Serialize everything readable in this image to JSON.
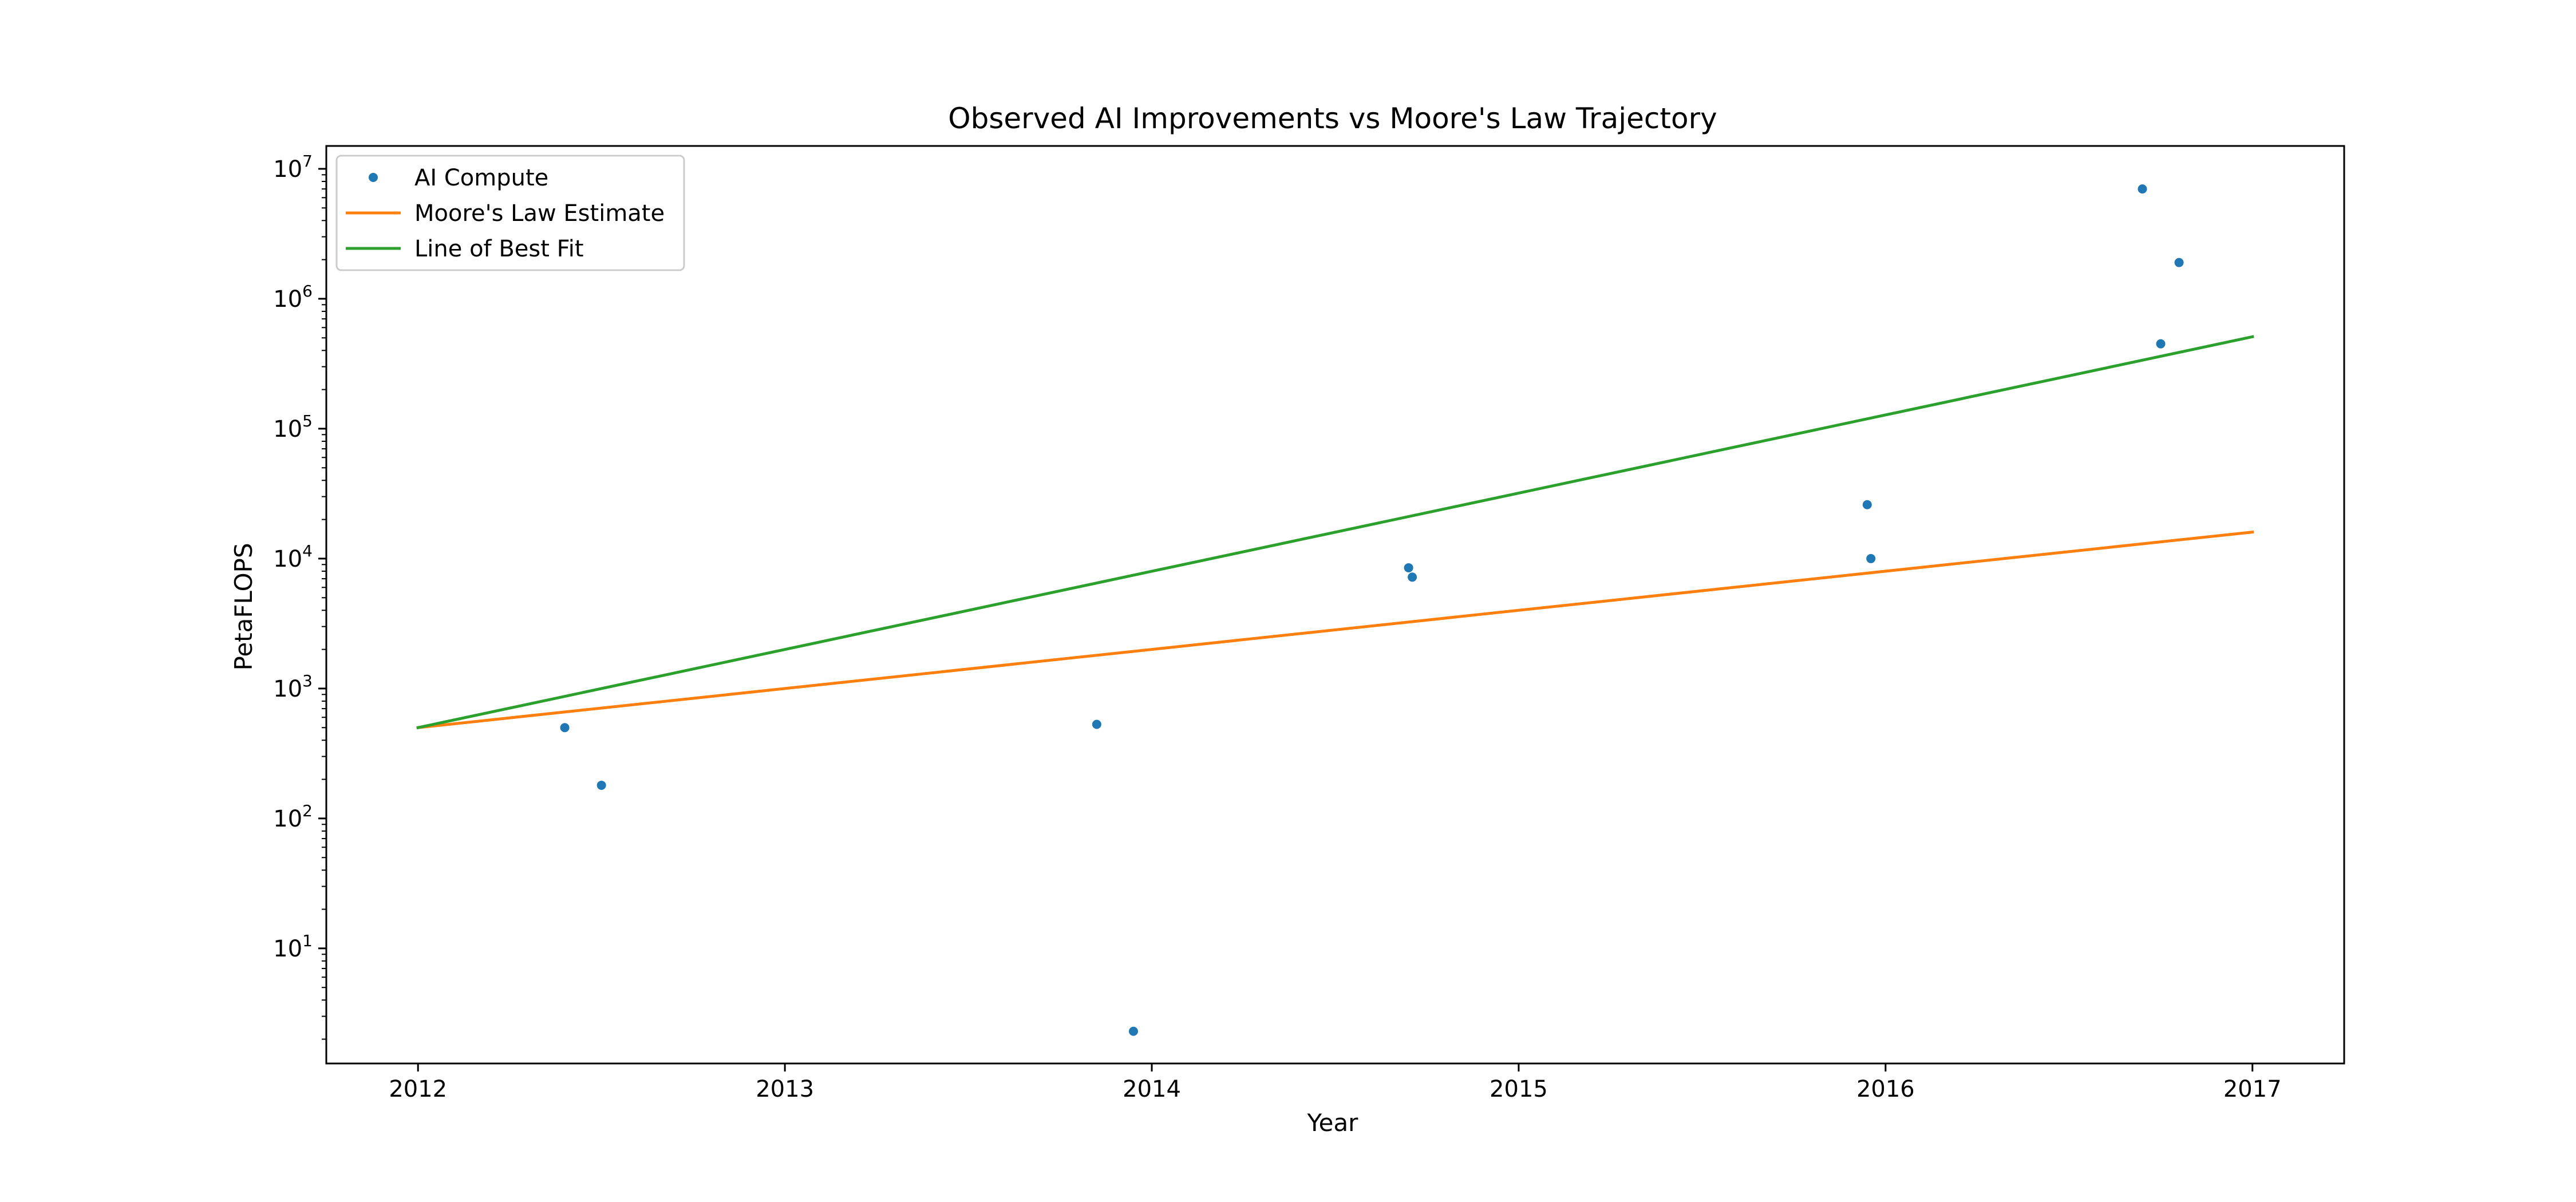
{
  "chart_data": {
    "type": "scatter",
    "title": "Observed AI Improvements vs Moore's Law Trajectory",
    "xlabel": "Year",
    "ylabel": "PetaFLOPS",
    "xscale": "linear",
    "yscale": "log",
    "xlim": [
      2011.75,
      2017.25
    ],
    "ylim": [
      1.3,
      15000000
    ],
    "x_ticks": [
      {
        "value": 2012,
        "label": "2012"
      },
      {
        "value": 2013,
        "label": "2013"
      },
      {
        "value": 2014,
        "label": "2014"
      },
      {
        "value": 2015,
        "label": "2015"
      },
      {
        "value": 2016,
        "label": "2016"
      },
      {
        "value": 2017,
        "label": "2017"
      }
    ],
    "y_ticks": [
      {
        "value": 10,
        "base": "10",
        "exp": "1"
      },
      {
        "value": 100,
        "base": "10",
        "exp": "2"
      },
      {
        "value": 1000,
        "base": "10",
        "exp": "3"
      },
      {
        "value": 10000,
        "base": "10",
        "exp": "4"
      },
      {
        "value": 100000,
        "base": "10",
        "exp": "5"
      },
      {
        "value": 1000000,
        "base": "10",
        "exp": "6"
      },
      {
        "value": 10000000,
        "base": "10",
        "exp": "7"
      }
    ],
    "grid": false,
    "legend_position": "top-left",
    "series": [
      {
        "name": "AI Compute",
        "kind": "scatter",
        "color": "#1f77b4",
        "points": [
          {
            "x": 2012.4,
            "y": 500
          },
          {
            "x": 2012.5,
            "y": 180
          },
          {
            "x": 2013.85,
            "y": 530
          },
          {
            "x": 2013.95,
            "y": 2.3
          },
          {
            "x": 2014.7,
            "y": 8500
          },
          {
            "x": 2014.71,
            "y": 7200
          },
          {
            "x": 2015.95,
            "y": 26000
          },
          {
            "x": 2015.96,
            "y": 10000
          },
          {
            "x": 2016.7,
            "y": 7000000
          },
          {
            "x": 2016.75,
            "y": 450000
          },
          {
            "x": 2016.8,
            "y": 1900000
          }
        ]
      },
      {
        "name": "Moore's Law Estimate",
        "kind": "line",
        "color": "#ff7f0e",
        "points": [
          {
            "x": 2012,
            "y": 500
          },
          {
            "x": 2017,
            "y": 16000
          }
        ]
      },
      {
        "name": "Line of Best Fit",
        "kind": "line",
        "color": "#2ca02c",
        "points": [
          {
            "x": 2012,
            "y": 500
          },
          {
            "x": 2017,
            "y": 510000
          }
        ]
      }
    ]
  }
}
